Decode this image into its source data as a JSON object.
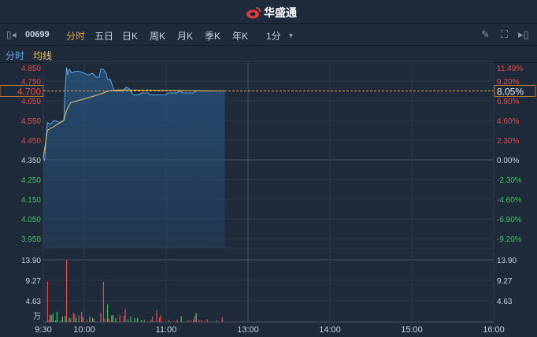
{
  "app": {
    "brand": "华盛通"
  },
  "toolbar": {
    "stock_code": "00699",
    "tabs": [
      "分时",
      "五日",
      "日K",
      "周K",
      "月K",
      "季K",
      "年K"
    ],
    "active_tab": "分时",
    "interval": "1分"
  },
  "legend": {
    "price": "分时",
    "avg": "均线"
  },
  "colors": {
    "price_line": "#5aa7e8",
    "avg_line": "#e8c66a",
    "up": "#e84a4a",
    "down": "#3cc45a",
    "accent": "#e8a33c"
  },
  "icons": [
    "collapse-left-icon",
    "pencil-icon",
    "fullscreen-icon",
    "expand-right-icon",
    "dropdown-arrow-icon"
  ],
  "chart_data": [
    {
      "type": "line",
      "name": "price",
      "prev_close": 4.35,
      "current_price_label": "4.700",
      "current_pct_label": "8.05%",
      "y_ticks": [
        "4.850",
        "4.750",
        "4.650",
        "4.550",
        "4.450",
        "4.350",
        "4.250",
        "4.150",
        "4.050",
        "3.950"
      ],
      "pct_ticks": [
        "11.49%",
        "9.20%",
        "6.90%",
        "4.60%",
        "2.30%",
        "0.00%",
        "-2.30%",
        "-4.60%",
        "-6.90%",
        "-9.20%"
      ],
      "x_ticks": [
        "9:30",
        "10:00",
        "11:00",
        "13:00",
        "14:00",
        "15:00",
        "16:00"
      ],
      "series": [
        {
          "name": "分时",
          "points": [
            [
              "9:30",
              4.36
            ],
            [
              "9:31",
              4.345
            ],
            [
              "9:32",
              4.45
            ],
            [
              "9:33",
              4.54
            ],
            [
              "9:35",
              4.53
            ],
            [
              "9:38",
              4.55
            ],
            [
              "9:42",
              4.54
            ],
            [
              "9:45",
              4.55
            ],
            [
              "9:46",
              4.7
            ],
            [
              "9:47",
              4.82
            ],
            [
              "9:48",
              4.78
            ],
            [
              "9:49",
              4.81
            ],
            [
              "9:51",
              4.79
            ],
            [
              "9:53",
              4.8
            ],
            [
              "9:56",
              4.8
            ],
            [
              "10:00",
              4.79
            ],
            [
              "10:03",
              4.78
            ],
            [
              "10:06",
              4.79
            ],
            [
              "10:09",
              4.77
            ],
            [
              "10:11",
              4.77
            ],
            [
              "10:12",
              4.81
            ],
            [
              "10:14",
              4.81
            ],
            [
              "10:16",
              4.79
            ],
            [
              "10:17",
              4.76
            ],
            [
              "10:19",
              4.76
            ],
            [
              "10:22",
              4.7
            ],
            [
              "10:24",
              4.7
            ],
            [
              "10:28",
              4.7
            ],
            [
              "10:31",
              4.72
            ],
            [
              "10:33",
              4.71
            ],
            [
              "10:36",
              4.68
            ],
            [
              "10:40",
              4.68
            ],
            [
              "10:42",
              4.69
            ],
            [
              "10:47",
              4.69
            ],
            [
              "10:48",
              4.68
            ],
            [
              "11:00",
              4.68
            ],
            [
              "11:01",
              4.69
            ],
            [
              "11:08",
              4.69
            ],
            [
              "11:10",
              4.7
            ],
            [
              "11:12",
              4.69
            ],
            [
              "11:20",
              4.69
            ],
            [
              "11:22",
              4.7
            ],
            [
              "11:43",
              4.7
            ]
          ]
        },
        {
          "name": "均线",
          "points": [
            [
              "9:30",
              4.36
            ],
            [
              "9:33",
              4.5
            ],
            [
              "9:45",
              4.55
            ],
            [
              "9:47",
              4.6
            ],
            [
              "9:50",
              4.64
            ],
            [
              "9:55",
              4.65
            ],
            [
              "10:00",
              4.66
            ],
            [
              "10:10",
              4.68
            ],
            [
              "10:18",
              4.7
            ],
            [
              "10:25",
              4.705
            ],
            [
              "11:43",
              4.7
            ]
          ]
        }
      ]
    },
    {
      "type": "bar",
      "name": "volume",
      "unit": "万",
      "y_ticks": [
        "13.90",
        "9.27",
        "4.63"
      ],
      "ylim": [
        0,
        13.9
      ],
      "bars": [
        [
          "9:33",
          9.0,
          "up"
        ],
        [
          "9:34",
          0.5,
          "up"
        ],
        [
          "9:35",
          1.7,
          "down"
        ],
        [
          "9:36",
          1.5,
          "up"
        ],
        [
          "9:37",
          1.9,
          "down"
        ],
        [
          "9:39",
          0.4,
          "down"
        ],
        [
          "9:40",
          2.3,
          "down"
        ],
        [
          "9:43",
          0.4,
          "up"
        ],
        [
          "9:44",
          1.3,
          "down"
        ],
        [
          "9:46",
          1.4,
          "down"
        ],
        [
          "9:47",
          13.9,
          "up"
        ],
        [
          "9:49",
          1.0,
          "down"
        ],
        [
          "9:50",
          0.8,
          "up"
        ],
        [
          "9:52",
          2.1,
          "up"
        ],
        [
          "9:53",
          1.7,
          "up"
        ],
        [
          "9:54",
          0.9,
          "down"
        ],
        [
          "9:56",
          1.5,
          "up"
        ],
        [
          "9:58",
          2.3,
          "up"
        ],
        [
          "9:59",
          1.1,
          "down"
        ],
        [
          "10:02",
          0.5,
          "up"
        ],
        [
          "10:04",
          1.2,
          "down"
        ],
        [
          "10:06",
          1.0,
          "down"
        ],
        [
          "10:07",
          0.7,
          "up"
        ],
        [
          "10:12",
          2.1,
          "up"
        ],
        [
          "10:14",
          9.0,
          "up"
        ],
        [
          "10:15",
          0.8,
          "up"
        ],
        [
          "10:17",
          4.0,
          "down"
        ],
        [
          "10:18",
          0.8,
          "up"
        ],
        [
          "10:20",
          1.5,
          "down"
        ],
        [
          "10:21",
          1.6,
          "down"
        ],
        [
          "10:23",
          0.9,
          "down"
        ],
        [
          "10:26",
          1.6,
          "up"
        ],
        [
          "10:29",
          1.4,
          "up"
        ],
        [
          "10:30",
          2.9,
          "up"
        ],
        [
          "10:32",
          0.6,
          "down"
        ],
        [
          "10:34",
          1.2,
          "down"
        ],
        [
          "10:37",
          0.9,
          "down"
        ],
        [
          "10:39",
          0.9,
          "down"
        ],
        [
          "10:42",
          0.5,
          "down"
        ],
        [
          "10:44",
          0.5,
          "up"
        ],
        [
          "10:49",
          0.5,
          "up"
        ],
        [
          "10:50",
          1.2,
          "up"
        ],
        [
          "10:53",
          2.6,
          "up"
        ],
        [
          "10:55",
          1.0,
          "up"
        ],
        [
          "10:56",
          1.6,
          "up"
        ],
        [
          "11:02",
          0.5,
          "up"
        ],
        [
          "11:08",
          0.5,
          "up"
        ],
        [
          "11:11",
          1.3,
          "down"
        ],
        [
          "11:16",
          0.4,
          "up"
        ],
        [
          "11:18",
          0.4,
          "up"
        ],
        [
          "11:20",
          0.5,
          "up"
        ],
        [
          "11:21",
          1.4,
          "up"
        ],
        [
          "11:22",
          2.0,
          "down"
        ],
        [
          "11:24",
          0.5,
          "up"
        ],
        [
          "11:26",
          0.5,
          "up"
        ],
        [
          "11:30",
          0.6,
          "up"
        ],
        [
          "11:37",
          0.4,
          "up"
        ],
        [
          "11:41",
          1.1,
          "up"
        ]
      ]
    }
  ]
}
